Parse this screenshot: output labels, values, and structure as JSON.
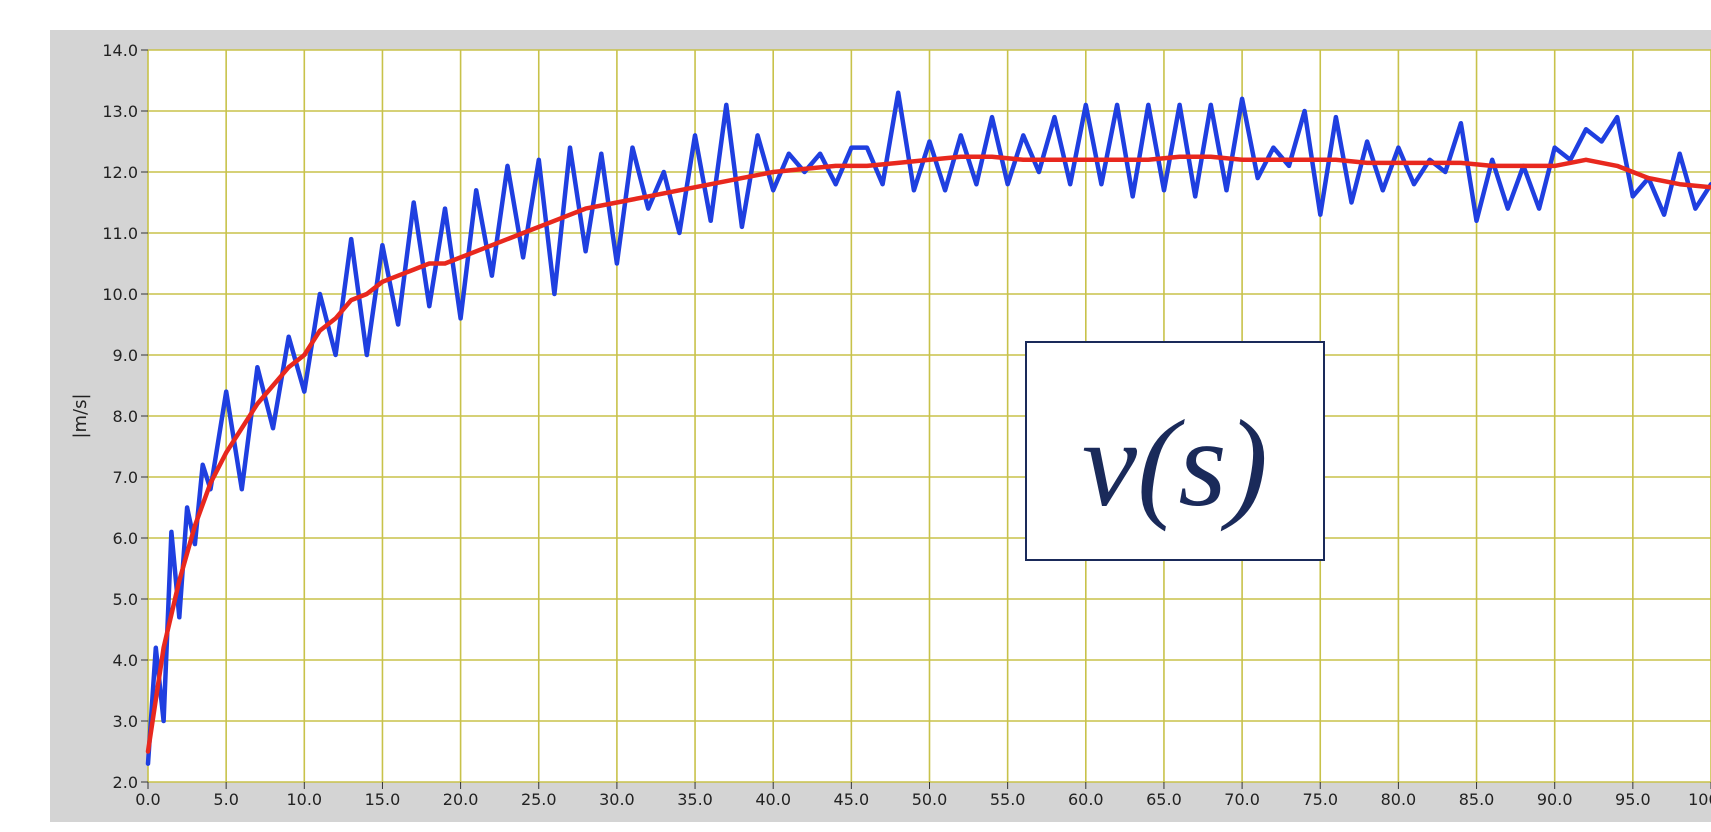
{
  "chart_data": {
    "type": "line",
    "title": "",
    "xlabel": "",
    "ylabel": "|m/s|",
    "xlim": [
      0,
      100
    ],
    "ylim": [
      2,
      14
    ],
    "grid": true,
    "x_ticks": [
      "0.0",
      "5.0",
      "10.0",
      "15.0",
      "20.0",
      "25.0",
      "30.0",
      "35.0",
      "40.0",
      "45.0",
      "50.0",
      "55.0",
      "60.0",
      "65.0",
      "70.0",
      "75.0",
      "80.0",
      "85.0",
      "90.0",
      "95.0",
      "100.0"
    ],
    "y_ticks": [
      "2.0",
      "3.0",
      "4.0",
      "5.0",
      "6.0",
      "7.0",
      "8.0",
      "9.0",
      "10.0",
      "11.0",
      "12.0",
      "13.0",
      "14.0"
    ],
    "annotation": "v(s)",
    "colors": {
      "raw": "#1f3fe0",
      "smooth": "#e8281e",
      "grid": "#c8c24a",
      "plot_bg": "#ffffff",
      "frame_bg": "#d4d4d4"
    },
    "series": [
      {
        "x": [
          0,
          0.5,
          1,
          1.5,
          2,
          2.5,
          3,
          3.5,
          4,
          5,
          6,
          7,
          8,
          9,
          10,
          11,
          12,
          13,
          14,
          15,
          16,
          17,
          18,
          19,
          20,
          21,
          22,
          23,
          24,
          25,
          26,
          27,
          28,
          29,
          30,
          31,
          32,
          33,
          34,
          35,
          36,
          37,
          38,
          39,
          40,
          41,
          42,
          43,
          44,
          45,
          46,
          47,
          48,
          49,
          50,
          51,
          52,
          53,
          54,
          55,
          56,
          57,
          58,
          59,
          60,
          61,
          62,
          63,
          64,
          65,
          66,
          67,
          68,
          69,
          70,
          71,
          72,
          73,
          74,
          75,
          76,
          77,
          78,
          79,
          80,
          81,
          82,
          83,
          84,
          85,
          86,
          87,
          88,
          89,
          90,
          91,
          92,
          93,
          94,
          95,
          96,
          97,
          98,
          99,
          100
        ],
        "y": [
          2.3,
          4.2,
          3.0,
          6.1,
          4.7,
          6.5,
          5.9,
          7.2,
          6.8,
          8.4,
          6.8,
          8.8,
          7.8,
          9.3,
          8.4,
          10.0,
          9.0,
          10.9,
          9.0,
          10.8,
          9.5,
          11.5,
          9.8,
          11.4,
          9.6,
          11.7,
          10.3,
          12.1,
          10.6,
          12.2,
          10.0,
          12.4,
          10.7,
          12.3,
          10.5,
          12.4,
          11.4,
          12.0,
          11.0,
          12.6,
          11.2,
          13.1,
          11.1,
          12.6,
          11.7,
          12.3,
          12.0,
          12.3,
          11.8,
          12.4,
          12.4,
          11.8,
          13.3,
          11.7,
          12.5,
          11.7,
          12.6,
          11.8,
          12.9,
          11.8,
          12.6,
          12.0,
          12.9,
          11.8,
          13.1,
          11.8,
          13.1,
          11.6,
          13.1,
          11.7,
          13.1,
          11.6,
          13.1,
          11.7,
          13.2,
          11.9,
          12.4,
          12.1,
          13.0,
          11.3,
          12.9,
          11.5,
          12.5,
          11.7,
          12.4,
          11.8,
          12.2,
          12.0,
          12.8,
          11.2,
          12.2,
          11.4,
          12.1,
          11.4,
          12.4,
          12.2,
          12.7,
          12.5,
          12.9,
          11.6,
          11.9,
          11.3,
          12.3,
          11.4,
          11.8
        ]
      },
      {
        "x": [
          0,
          1,
          2,
          3,
          4,
          5,
          6,
          7,
          8,
          9,
          10,
          11,
          12,
          13,
          14,
          15,
          16,
          17,
          18,
          19,
          20,
          22,
          24,
          26,
          28,
          30,
          32,
          34,
          36,
          38,
          40,
          42,
          44,
          46,
          48,
          50,
          52,
          54,
          56,
          58,
          60,
          62,
          64,
          66,
          68,
          70,
          72,
          74,
          76,
          78,
          80,
          82,
          84,
          86,
          88,
          90,
          92,
          94,
          96,
          98,
          100
        ],
        "y": [
          2.5,
          4.2,
          5.3,
          6.2,
          6.9,
          7.4,
          7.8,
          8.2,
          8.5,
          8.8,
          9.0,
          9.4,
          9.6,
          9.9,
          10.0,
          10.2,
          10.3,
          10.4,
          10.5,
          10.5,
          10.6,
          10.8,
          11.0,
          11.2,
          11.4,
          11.5,
          11.6,
          11.7,
          11.8,
          11.9,
          12.0,
          12.05,
          12.1,
          12.1,
          12.15,
          12.2,
          12.25,
          12.25,
          12.2,
          12.2,
          12.2,
          12.2,
          12.2,
          12.25,
          12.25,
          12.2,
          12.2,
          12.2,
          12.2,
          12.15,
          12.15,
          12.15,
          12.15,
          12.1,
          12.1,
          12.1,
          12.2,
          12.1,
          11.9,
          11.8,
          11.75
        ]
      }
    ]
  }
}
